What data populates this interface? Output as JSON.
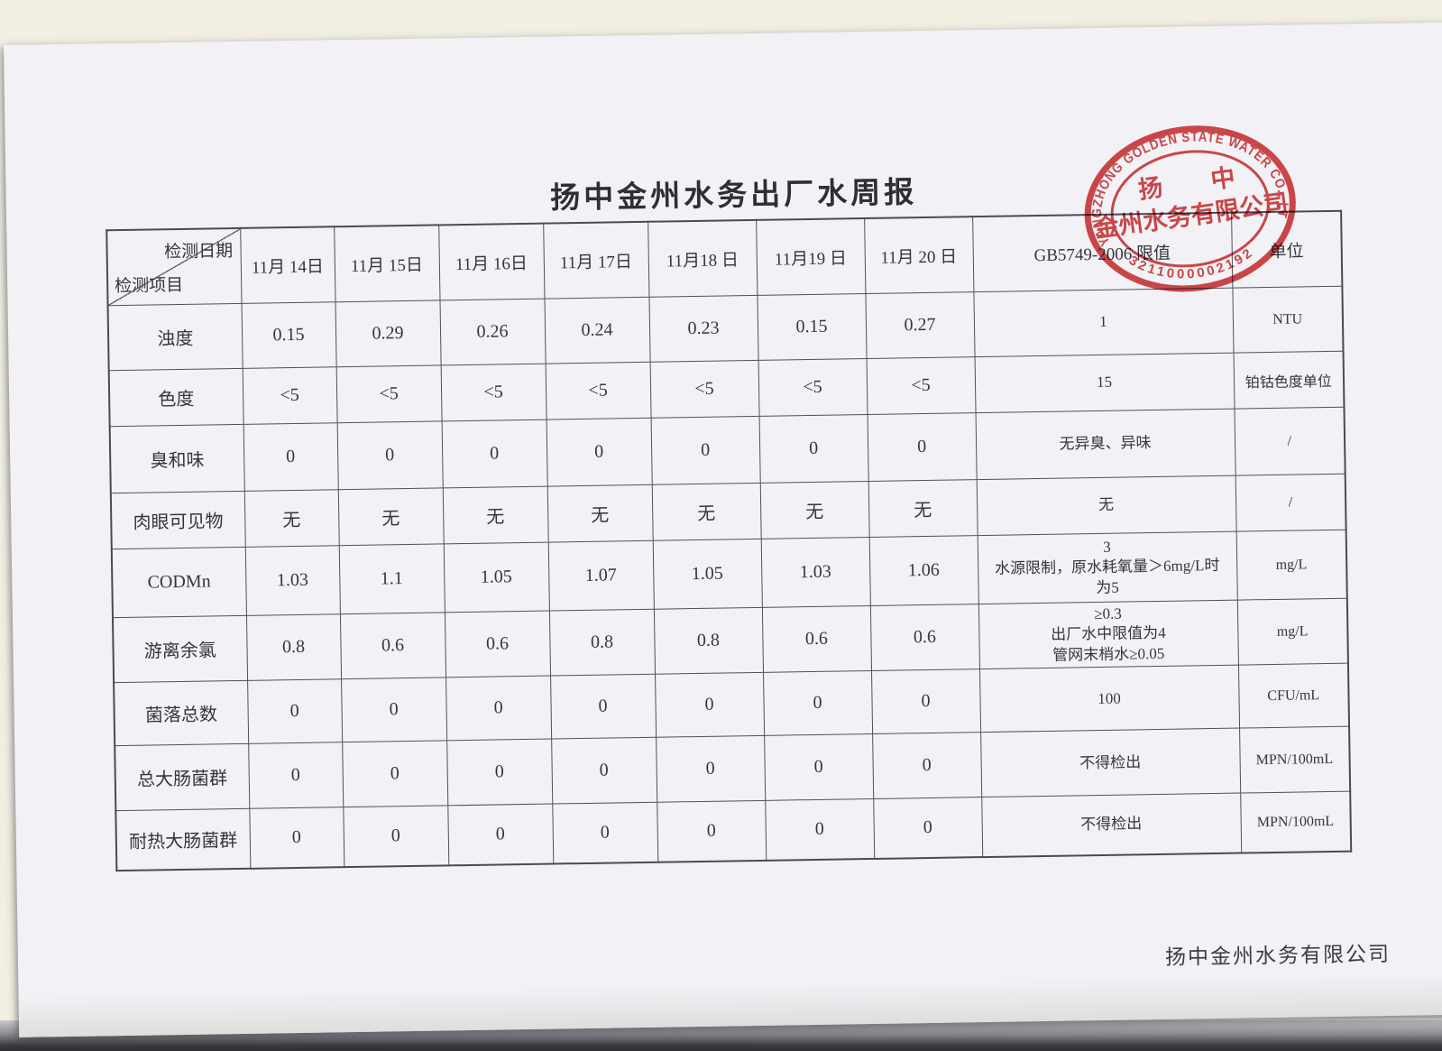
{
  "page": {
    "title": "扬中金州水务出厂水周报",
    "footer_company": "扬中金州水务有限公司"
  },
  "table": {
    "corner": {
      "top": "检测日期",
      "bottom": "检测项目"
    },
    "dates": [
      "11月 14日",
      "11月 15日",
      "11月 16日",
      "11月 17日",
      "11月18 日",
      "11月19 日",
      "11月 20 日"
    ],
    "limit_header": "GB5749-2006 限值",
    "unit_header": "单位",
    "rows": [
      {
        "label": "浊度",
        "values": [
          "0.15",
          "0.29",
          "0.26",
          "0.24",
          "0.23",
          "0.15",
          "0.27"
        ],
        "limit": "1",
        "unit": "NTU"
      },
      {
        "label": "色度",
        "values": [
          "<5",
          "<5",
          "<5",
          "<5",
          "<5",
          "<5",
          "<5"
        ],
        "limit": "15",
        "unit": "铂钴色度单位"
      },
      {
        "label": "臭和味",
        "values": [
          "0",
          "0",
          "0",
          "0",
          "0",
          "0",
          "0"
        ],
        "limit": "无异臭、异味",
        "unit": "/"
      },
      {
        "label": "肉眼可见物",
        "values": [
          "无",
          "无",
          "无",
          "无",
          "无",
          "无",
          "无"
        ],
        "limit": "无",
        "unit": "/"
      },
      {
        "label": "CODMn",
        "values": [
          "1.03",
          "1.1",
          "1.05",
          "1.07",
          "1.05",
          "1.03",
          "1.06"
        ],
        "limit": "3\n水源限制，原水耗氧量＞6mg/L时\n为5",
        "unit": "mg/L"
      },
      {
        "label": "游离余氯",
        "values": [
          "0.8",
          "0.6",
          "0.6",
          "0.8",
          "0.8",
          "0.6",
          "0.6"
        ],
        "limit": "≥0.3\n出厂水中限值为4\n管网末梢水≥0.05",
        "unit": "mg/L"
      },
      {
        "label": "菌落总数",
        "values": [
          "0",
          "0",
          "0",
          "0",
          "0",
          "0",
          "0"
        ],
        "limit": "100",
        "unit": "CFU/mL"
      },
      {
        "label": "总大肠菌群",
        "values": [
          "0",
          "0",
          "0",
          "0",
          "0",
          "0",
          "0"
        ],
        "limit": "不得检出",
        "unit": "MPN/100mL"
      },
      {
        "label": "耐热大肠菌群",
        "values": [
          "0",
          "0",
          "0",
          "0",
          "0",
          "0",
          "0"
        ],
        "limit": "不得检出",
        "unit": "MPN/100mL"
      }
    ]
  },
  "stamp": {
    "ring_text": "YANGZHONG GOLDEN STATE WATER CO., LTD.",
    "line1": "扬　　中",
    "line2": "金州水务有限公司",
    "number": "3211000002192",
    "color": "#d23a3a"
  }
}
